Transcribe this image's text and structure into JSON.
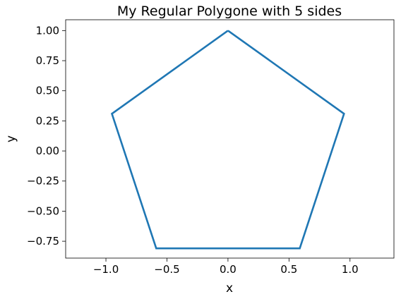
{
  "chart_data": {
    "type": "line",
    "title": "My Regular Polygone with 5 sides",
    "xlabel": "x",
    "ylabel": "y",
    "xlim": [
      -1.33,
      1.36
    ],
    "ylim": [
      -0.89,
      1.09
    ],
    "grid": false,
    "line_color": "#1f77b4",
    "series": [
      {
        "x": [
          0.0,
          0.951,
          0.588,
          -0.588,
          -0.951,
          0.0
        ],
        "y": [
          1.0,
          0.309,
          -0.809,
          -0.809,
          0.309,
          1.0
        ]
      }
    ],
    "xticks": [
      -1.0,
      -0.5,
      0.0,
      0.5,
      1.0
    ],
    "xtick_labels": [
      "−1.0",
      "−0.5",
      "0.0",
      "0.5",
      "1.0"
    ],
    "yticks": [
      1.0,
      0.75,
      0.5,
      0.25,
      0.0,
      -0.25,
      -0.5,
      -0.75
    ],
    "ytick_labels": [
      "1.00",
      "0.75",
      "0.50",
      "0.25",
      "0.00",
      "−0.25",
      "−0.50",
      "−0.75"
    ]
  }
}
